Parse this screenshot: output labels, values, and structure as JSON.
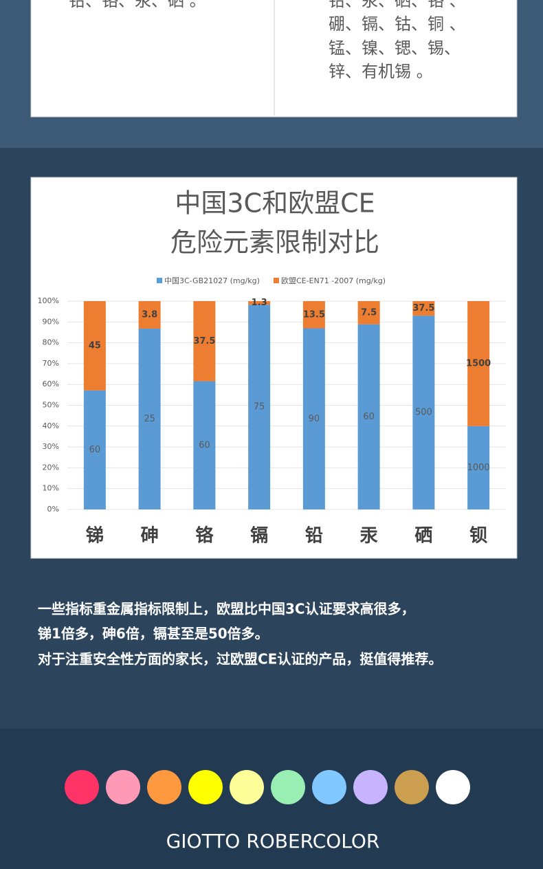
{
  "top_table": {
    "left_lines": [
      "铅、铬、汞、硒 。"
    ],
    "right_lines": [
      "铅、汞、硒、铬 、",
      "硼、镉、钴、铜 、",
      "锰、镍、锶、锡、",
      "锌、有机锡 。"
    ]
  },
  "chart_data": {
    "type": "bar",
    "stacking": "percent",
    "title": [
      "中国3C和欧盟CE",
      "危险元素限制对比"
    ],
    "categories": [
      "锑",
      "砷",
      "铬",
      "镉",
      "铅",
      "汞",
      "硒",
      "钡"
    ],
    "series": [
      {
        "name": "中国3C-GB21027 (mg/kg)",
        "color": "#5b9bd5",
        "values": [
          60,
          25,
          60,
          75,
          90,
          60,
          500,
          1000
        ]
      },
      {
        "name": "欧盟CE-EN71  -2007 (mg/kg)",
        "color": "#ed7d31",
        "values": [
          45,
          3.8,
          37.5,
          1.3,
          13.5,
          7.5,
          37.5,
          1500
        ]
      }
    ],
    "ylim": [
      0,
      100
    ],
    "yticks": [
      {
        "value": 0,
        "label": "0%"
      },
      {
        "value": 10,
        "label": "10%"
      },
      {
        "value": 20,
        "label": "20%"
      },
      {
        "value": 30,
        "label": "30%"
      },
      {
        "value": 40,
        "label": "40%"
      },
      {
        "value": 50,
        "label": "50%"
      },
      {
        "value": 60,
        "label": "60%"
      },
      {
        "value": 70,
        "label": "70%"
      },
      {
        "value": 80,
        "label": "80%"
      },
      {
        "value": 90,
        "label": "90%"
      },
      {
        "value": 100,
        "label": "100%"
      }
    ],
    "grid": true
  },
  "description": [
    "一些指标重金属指标限制上，欧盟比中国3C认证要求高很多，",
    "锑1倍多，砷6倍，镉甚至是50倍多。",
    "对于注重安全性方面的家长，过欧盟CE认证的产品，挺值得推荐。"
  ],
  "brand": "GIOTTO ROBERCOLOR"
}
